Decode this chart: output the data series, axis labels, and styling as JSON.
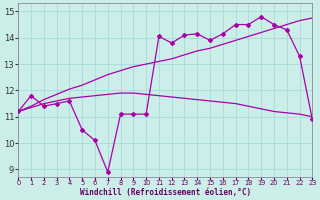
{
  "xlabel": "Windchill (Refroidissement éolien,°C)",
  "bg_color": "#cceee8",
  "grid_color": "#aadddd",
  "line_color": "#aa00aa",
  "x_ticks": [
    0,
    1,
    2,
    3,
    4,
    5,
    6,
    7,
    8,
    9,
    10,
    11,
    12,
    13,
    14,
    15,
    16,
    17,
    18,
    19,
    20,
    21,
    22,
    23
  ],
  "y_ticks": [
    9,
    10,
    11,
    12,
    13,
    14,
    15
  ],
  "xlim": [
    0,
    23
  ],
  "ylim": [
    8.7,
    15.3
  ],
  "line1_x": [
    0,
    1,
    2,
    3,
    4,
    5,
    6,
    7,
    8,
    9,
    10,
    11,
    12,
    13,
    14,
    15,
    16,
    17,
    18,
    19,
    20,
    21,
    22,
    23
  ],
  "line1_y": [
    11.2,
    11.8,
    11.4,
    11.5,
    11.6,
    10.5,
    10.1,
    8.9,
    11.1,
    11.1,
    11.1,
    14.05,
    13.8,
    14.1,
    14.15,
    13.9,
    14.15,
    14.5,
    14.5,
    14.8,
    14.5,
    14.3,
    13.3,
    10.9
  ],
  "line2_x": [
    0,
    1,
    2,
    3,
    4,
    5,
    6,
    7,
    8,
    9,
    10,
    11,
    12,
    13,
    14,
    15,
    16,
    17,
    18,
    19,
    20,
    21,
    22,
    23
  ],
  "line2_y": [
    11.2,
    11.4,
    11.65,
    11.85,
    12.05,
    12.2,
    12.4,
    12.6,
    12.75,
    12.9,
    13.0,
    13.1,
    13.2,
    13.35,
    13.5,
    13.6,
    13.75,
    13.9,
    14.05,
    14.2,
    14.35,
    14.5,
    14.65,
    14.75
  ],
  "line3_x": [
    0,
    1,
    2,
    3,
    4,
    5,
    6,
    7,
    8,
    9,
    10,
    11,
    12,
    13,
    14,
    15,
    16,
    17,
    18,
    19,
    20,
    21,
    22,
    23
  ],
  "line3_y": [
    11.2,
    11.35,
    11.5,
    11.6,
    11.7,
    11.75,
    11.8,
    11.85,
    11.9,
    11.9,
    11.85,
    11.8,
    11.75,
    11.7,
    11.65,
    11.6,
    11.55,
    11.5,
    11.4,
    11.3,
    11.2,
    11.15,
    11.1,
    11.0
  ]
}
